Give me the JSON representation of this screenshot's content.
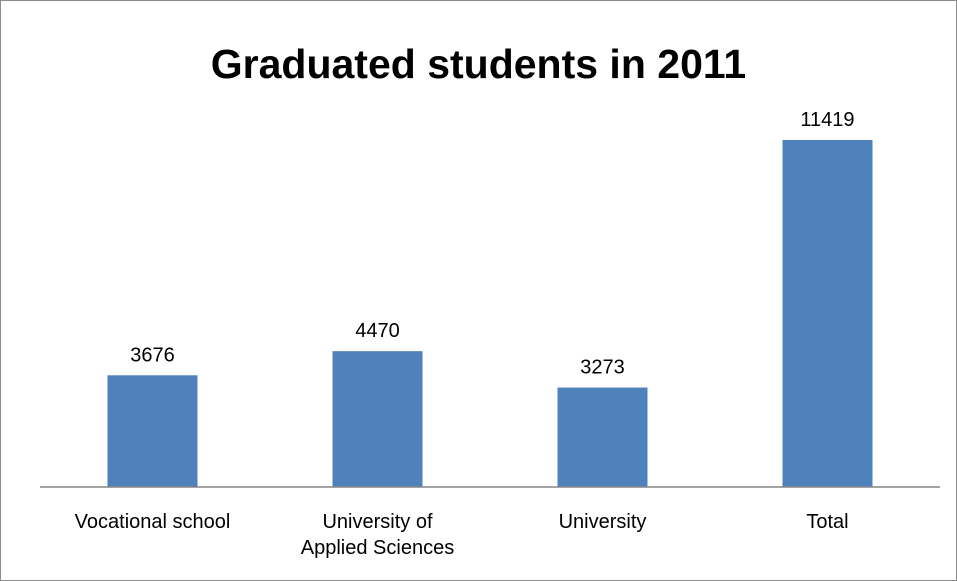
{
  "chart_data": {
    "type": "bar",
    "title": "Graduated students in 2011",
    "categories": [
      [
        "Vocational school"
      ],
      [
        "University of",
        "Applied Sciences"
      ],
      [
        "University"
      ],
      [
        "Total"
      ]
    ],
    "values": [
      3676,
      4470,
      3273,
      11419
    ],
    "data_labels": [
      "3676",
      "4470",
      "3273",
      "11419"
    ],
    "xlabel": "",
    "ylabel": "",
    "ylim": [
      0,
      12000
    ],
    "grid": false,
    "legend": "none",
    "bar_color": "#4F81BD",
    "axis_color": "#868686"
  }
}
